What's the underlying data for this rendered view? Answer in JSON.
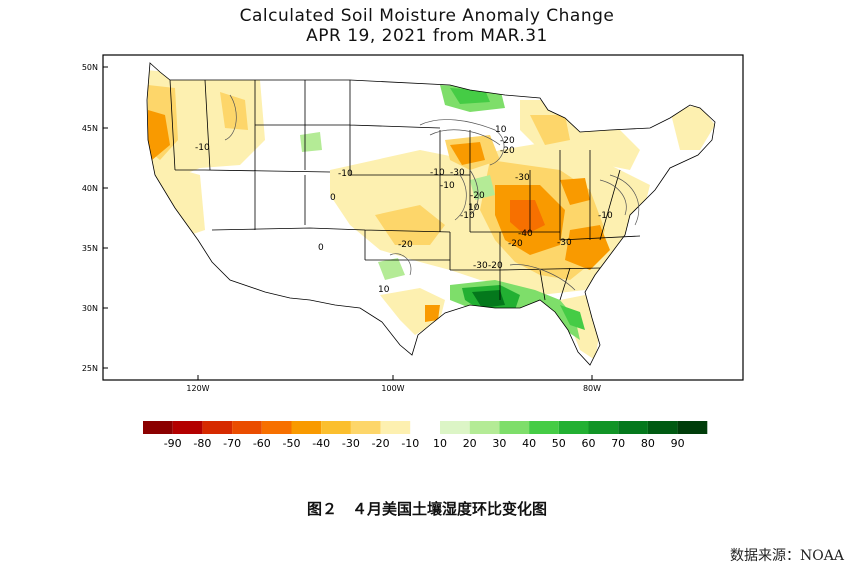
{
  "title": {
    "line1": "Calculated Soil Moisture Anomaly Change",
    "line2": "APR 19, 2021 from MAR.31"
  },
  "axes": {
    "lat_labels": [
      "50N",
      "45N",
      "40N",
      "35N",
      "30N",
      "25N"
    ],
    "lon_labels": [
      "120W",
      "100W",
      "80W"
    ]
  },
  "contour_labels": [
    "-10",
    "-10",
    "-10",
    "-30",
    "-20",
    "-20",
    "-20",
    "-30",
    "-30",
    "-10",
    "-10",
    "-40",
    "-20",
    "-20",
    "-30",
    "-20",
    "0",
    "0",
    "10",
    "10",
    "10",
    "-10"
  ],
  "legend": {
    "labels": [
      "-90",
      "-80",
      "-70",
      "-60",
      "-50",
      "-40",
      "-30",
      "-20",
      "-10",
      "10",
      "20",
      "30",
      "40",
      "50",
      "60",
      "70",
      "80",
      "90"
    ],
    "colors": [
      "#8b0000",
      "#b30000",
      "#d62a00",
      "#ea4d00",
      "#f77000",
      "#f99a00",
      "#fbbf2e",
      "#fdd66a",
      "#fdf0b0",
      "#ffffff",
      "#dcf5c6",
      "#b4eb96",
      "#7ede6a",
      "#45cc45",
      "#22b032",
      "#119426",
      "#04781c",
      "#005a12",
      "#003d0a"
    ]
  },
  "caption": "图２　４月美国土壤湿度环比变化图",
  "source": "数据来源：NOAA"
}
